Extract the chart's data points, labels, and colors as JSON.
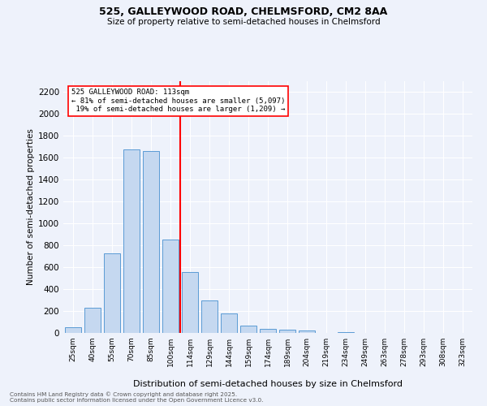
{
  "title1": "525, GALLEYWOOD ROAD, CHELMSFORD, CM2 8AA",
  "title2": "Size of property relative to semi-detached houses in Chelmsford",
  "xlabel": "Distribution of semi-detached houses by size in Chelmsford",
  "ylabel": "Number of semi-detached properties",
  "bar_labels": [
    "25sqm",
    "40sqm",
    "55sqm",
    "70sqm",
    "85sqm",
    "100sqm",
    "114sqm",
    "129sqm",
    "144sqm",
    "159sqm",
    "174sqm",
    "189sqm",
    "204sqm",
    "219sqm",
    "234sqm",
    "249sqm",
    "263sqm",
    "278sqm",
    "293sqm",
    "308sqm",
    "323sqm"
  ],
  "bar_values": [
    50,
    230,
    730,
    1680,
    1660,
    850,
    555,
    300,
    180,
    65,
    40,
    30,
    20,
    0,
    10,
    0,
    0,
    0,
    0,
    0,
    0
  ],
  "bar_color": "#c5d8f0",
  "bar_edge_color": "#5b9bd5",
  "vline_color": "red",
  "annotation_text": "525 GALLEYWOOD ROAD: 113sqm\n← 81% of semi-detached houses are smaller (5,097)\n 19% of semi-detached houses are larger (1,209) →",
  "ylim": [
    0,
    2300
  ],
  "yticks": [
    0,
    200,
    400,
    600,
    800,
    1000,
    1200,
    1400,
    1600,
    1800,
    2000,
    2200
  ],
  "footer1": "Contains HM Land Registry data © Crown copyright and database right 2025.",
  "footer2": "Contains public sector information licensed under the Open Government Licence v3.0.",
  "bg_color": "#eef2fb",
  "plot_bg_color": "#eef2fb"
}
